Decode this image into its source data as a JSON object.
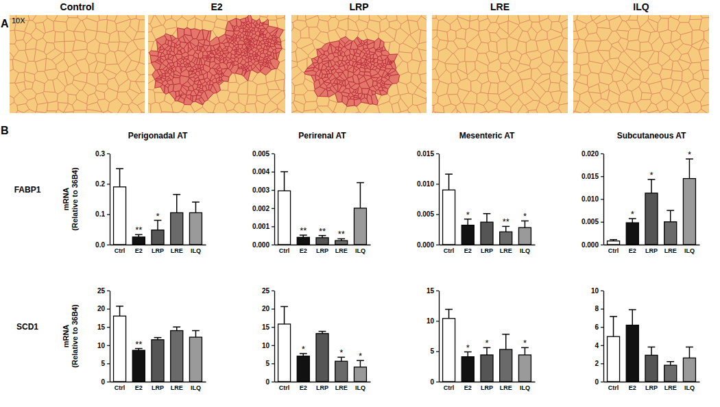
{
  "panel_a": {
    "label": "A",
    "magnification": "10X",
    "images": [
      "Control",
      "E2",
      "LRP",
      "LRE",
      "ILQ"
    ]
  },
  "panel_b": {
    "label": "B",
    "rows": [
      "FABP1",
      "SCD1"
    ]
  },
  "chart_data": [
    {
      "type": "bar",
      "title": "Perigonadal AT",
      "ylabel": "mRNA\n(Relative to 36B4)",
      "categories": [
        "Ctrl",
        "E2",
        "LRP",
        "LRE",
        "ILQ"
      ],
      "values": [
        0.19,
        0.025,
        0.048,
        0.105,
        0.105
      ],
      "errors": [
        0.06,
        0.008,
        0.032,
        0.06,
        0.035
      ],
      "annotations": [
        null,
        "**",
        "*",
        null,
        null
      ],
      "colors": [
        "#ffffff",
        "#111111",
        "#555555",
        "#6a6a6a",
        "#9a9a9a"
      ],
      "ylim": [
        0,
        0.3
      ],
      "yticks": [
        {
          "value": 0,
          "label": "0.0"
        },
        0.1,
        0.2,
        0.3
      ]
    },
    {
      "type": "bar",
      "title": "Perirenal AT",
      "categories": [
        "Ctrl",
        "E2",
        "LRP",
        "LRE",
        "ILQ"
      ],
      "values": [
        0.00295,
        0.0004,
        0.00038,
        0.00022,
        0.002
      ],
      "errors": [
        0.00105,
        0.00012,
        0.00012,
        0.0001,
        0.0014
      ],
      "annotations": [
        null,
        "**",
        "**",
        "**",
        null
      ],
      "colors": [
        "#ffffff",
        "#111111",
        "#555555",
        "#6a6a6a",
        "#9a9a9a"
      ],
      "ylim": [
        0,
        0.005
      ],
      "yticks": [
        {
          "value": 0,
          "label": "0.000"
        },
        0.001,
        0.002,
        0.003,
        0.004,
        0.005
      ]
    },
    {
      "type": "bar",
      "title": "Mesenteric AT",
      "categories": [
        "Ctrl",
        "E2",
        "LRP",
        "LRE",
        "ILQ"
      ],
      "values": [
        0.009,
        0.0032,
        0.0037,
        0.0021,
        0.0028
      ],
      "errors": [
        0.0026,
        0.001,
        0.0014,
        0.0009,
        0.0011
      ],
      "annotations": [
        null,
        "*",
        null,
        "**",
        "*"
      ],
      "colors": [
        "#ffffff",
        "#111111",
        "#555555",
        "#6a6a6a",
        "#9a9a9a"
      ],
      "ylim": [
        0,
        0.015
      ],
      "yticks": [
        {
          "value": 0,
          "label": "0.000"
        },
        0.005,
        {
          "value": 0.01,
          "label": "0.010"
        },
        0.015
      ]
    },
    {
      "type": "bar",
      "title": "Subcutaneous AT",
      "categories": [
        "Ctrl",
        "E2",
        "LRP",
        "LRE",
        "ILQ"
      ],
      "values": [
        0.0008,
        0.0048,
        0.0113,
        0.005,
        0.0145
      ],
      "errors": [
        0.0003,
        0.0009,
        0.003,
        0.0025,
        0.0043
      ],
      "annotations": [
        null,
        "*",
        "*",
        null,
        "*"
      ],
      "colors": [
        "#ffffff",
        "#111111",
        "#555555",
        "#6a6a6a",
        "#9a9a9a"
      ],
      "ylim": [
        0,
        0.02
      ],
      "yticks": [
        {
          "value": 0,
          "label": "0.000"
        },
        0.005,
        {
          "value": 0.01,
          "label": "0.010"
        },
        0.015,
        {
          "value": 0.02,
          "label": "0.020"
        }
      ]
    },
    {
      "type": "bar",
      "ylabel": "mRNA\n(Relative to 36B4)",
      "categories": [
        "Ctrl",
        "E2",
        "LRP",
        "LRE",
        "ILQ"
      ],
      "values": [
        18,
        8.6,
        11.5,
        14,
        12.2
      ],
      "errors": [
        2.7,
        0.5,
        0.6,
        1,
        1.8
      ],
      "annotations": [
        null,
        "**",
        null,
        null,
        null
      ],
      "colors": [
        "#ffffff",
        "#111111",
        "#555555",
        "#6a6a6a",
        "#9a9a9a"
      ],
      "ylim": [
        0,
        25
      ],
      "yticks": [
        0,
        5,
        10,
        15,
        20,
        25
      ]
    },
    {
      "type": "bar",
      "categories": [
        "Ctrl",
        "E2",
        "LRP",
        "LRE",
        "ILQ"
      ],
      "values": [
        15.8,
        7,
        13.2,
        5.6,
        4
      ],
      "errors": [
        4.8,
        0.7,
        0.6,
        1.1,
        1.8
      ],
      "annotations": [
        null,
        "*",
        null,
        "*",
        "*"
      ],
      "colors": [
        "#ffffff",
        "#111111",
        "#555555",
        "#6a6a6a",
        "#9a9a9a"
      ],
      "ylim": [
        0,
        25
      ],
      "yticks": [
        0,
        5,
        10,
        15,
        20,
        25
      ]
    },
    {
      "type": "bar",
      "categories": [
        "Ctrl",
        "E2",
        "LRP",
        "LRE",
        "ILQ"
      ],
      "values": [
        10.4,
        4.1,
        4.4,
        5.3,
        4.4
      ],
      "errors": [
        1.5,
        0.8,
        1.2,
        2.5,
        1.2
      ],
      "annotations": [
        null,
        "*",
        "*",
        null,
        "*"
      ],
      "colors": [
        "#ffffff",
        "#111111",
        "#555555",
        "#6a6a6a",
        "#9a9a9a"
      ],
      "ylim": [
        0,
        15
      ],
      "yticks": [
        0,
        5,
        10,
        15
      ]
    },
    {
      "type": "bar",
      "categories": [
        "Ctrl",
        "E2",
        "LRP",
        "LRE",
        "ILQ"
      ],
      "values": [
        4.95,
        6.2,
        2.9,
        1.8,
        2.6
      ],
      "errors": [
        2.2,
        1.7,
        0.9,
        0.4,
        1.2
      ],
      "colors": [
        "#ffffff",
        "#111111",
        "#555555",
        "#6a6a6a",
        "#9a9a9a"
      ],
      "ylim": [
        0,
        10
      ],
      "yticks": [
        0,
        2,
        4,
        6,
        8,
        10
      ]
    }
  ]
}
